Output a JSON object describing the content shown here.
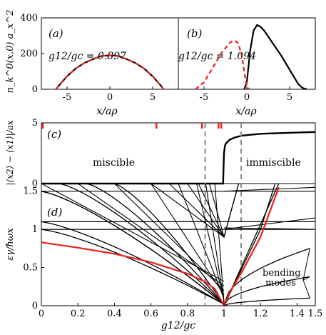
{
  "chart_data": [
    {
      "panel": "a",
      "type": "line",
      "panel_label": "(a)",
      "annotation": "g12/gc = 0.897",
      "xlabel": "x/aρ",
      "ylabel": "n_k^0(x,0) a_x^2",
      "xlim": [
        -8,
        8
      ],
      "ylim": [
        0,
        400
      ],
      "xticks": [
        -5,
        0,
        5
      ],
      "yticks": [
        0,
        200,
        400
      ],
      "series": [
        {
          "style": "solid",
          "color": "#000000",
          "x": [
            -6.3,
            -6,
            -5,
            -4,
            -3,
            -2,
            -1,
            0,
            1,
            2,
            3,
            4,
            5,
            6,
            6.3
          ],
          "y": [
            0,
            18,
            73,
            116,
            147,
            168,
            187,
            190,
            187,
            168,
            147,
            116,
            73,
            18,
            0
          ]
        },
        {
          "style": "dashed",
          "color": "#e8221b",
          "x": [
            -6.3,
            -6,
            -5,
            -4,
            -3,
            -2,
            -1,
            0,
            1,
            2,
            3,
            4,
            5,
            6,
            6.3
          ],
          "y": [
            0,
            18,
            73,
            116,
            147,
            168,
            187,
            190,
            187,
            168,
            147,
            116,
            73,
            18,
            0
          ]
        }
      ]
    },
    {
      "panel": "b",
      "type": "line",
      "panel_label": "(b)",
      "annotation": "g12/gc = 1.094",
      "xlabel": "x/aρ",
      "xlim": [
        -8,
        8
      ],
      "ylim": [
        0,
        400
      ],
      "xticks": [
        -5,
        0,
        5
      ],
      "series": [
        {
          "style": "solid",
          "color": "#000000",
          "x": [
            -0.3,
            0,
            0.4,
            0.8,
            1.2,
            1.6,
            2,
            3,
            4,
            5,
            6,
            6.5,
            7
          ],
          "y": [
            0,
            40,
            220,
            330,
            360,
            350,
            330,
            260,
            190,
            110,
            30,
            8,
            0
          ]
        },
        {
          "style": "dashed",
          "color": "#e8221b",
          "x": [
            -6,
            -5,
            -4,
            -3,
            -2,
            -1.5,
            -1,
            -0.6,
            -0.3,
            -0.1,
            0.1,
            0.3
          ],
          "y": [
            0,
            40,
            120,
            200,
            260,
            275,
            258,
            190,
            100,
            40,
            10,
            0
          ]
        }
      ]
    },
    {
      "panel": "c",
      "type": "line",
      "panel_label": "(c)",
      "ylabel": "|⟨x2⟩ − ⟨x1⟩|/ax",
      "xlim": [
        0,
        1.5
      ],
      "ylim": [
        0,
        5
      ],
      "yticks": [
        0,
        5
      ],
      "region_labels": [
        "miscible",
        "immiscible"
      ],
      "vlines": [
        0.897,
        1.094
      ],
      "red_marks": [
        0.0,
        0.63,
        0.88,
        0.97,
        0.985
      ],
      "series": [
        {
          "style": "solid",
          "color": "#000000",
          "x": [
            0,
            0.995,
            1.0,
            1.005,
            1.01,
            1.03,
            1.06,
            1.1,
            1.2,
            1.3,
            1.4,
            1.5
          ],
          "y": [
            0,
            0,
            2.5,
            3.1,
            3.3,
            3.6,
            3.8,
            3.95,
            4.1,
            4.15,
            4.2,
            4.25
          ]
        }
      ]
    },
    {
      "panel": "d",
      "type": "line",
      "panel_label": "(d)",
      "xlabel": "g12/gc",
      "ylabel": "εγ/ħωx",
      "xlim": [
        0,
        1.5
      ],
      "ylim": [
        0,
        1.6
      ],
      "xticks": [
        0,
        0.2,
        0.4,
        0.6,
        0.8,
        1,
        1.2,
        1.4,
        1.5
      ],
      "yticks": [
        0,
        0.5,
        1,
        1.5
      ],
      "annotation": "bending\nmodes",
      "vlines": [
        0.897,
        1.094
      ],
      "flat_levels": [
        1.0,
        1.1,
        1.5
      ],
      "red_curve": {
        "x": [
          0,
          0.2,
          0.4,
          0.6,
          0.8,
          0.9,
          0.95,
          1.0,
          1.05,
          1.1,
          1.2,
          1.3
        ],
        "y": [
          0.83,
          0.76,
          0.68,
          0.57,
          0.42,
          0.31,
          0.22,
          0.0,
          0.25,
          0.45,
          0.9,
          1.55
        ]
      },
      "fan_top_start": [
        0.0,
        0.2,
        0.4,
        0.6,
        0.75,
        0.85,
        0.9,
        0.95
      ],
      "bending_modes": [
        0.1,
        0.38,
        0.75
      ]
    }
  ]
}
